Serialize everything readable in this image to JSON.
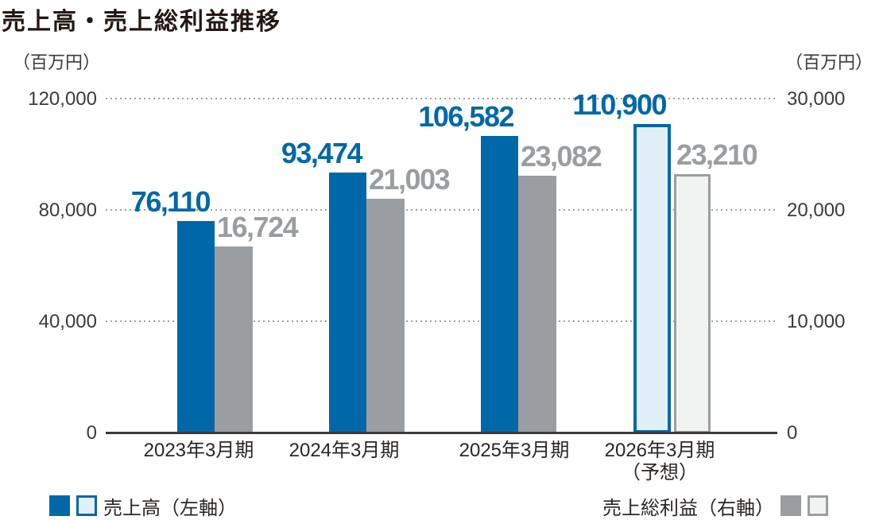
{
  "title": "売上高・売上総利益推移",
  "left_axis": {
    "unit": "（百万円）",
    "ticks": [
      "120,000",
      "80,000",
      "40,000",
      "0"
    ]
  },
  "right_axis": {
    "unit": "（百万円）",
    "ticks": [
      "30,000",
      "20,000",
      "10,000",
      "0"
    ]
  },
  "legend": {
    "revenue": "売上高（左軸）",
    "gross_profit": "売上総利益（右軸）"
  },
  "colors": {
    "revenue": "#0068A8",
    "revenue_forecast_fill": "#E1EFF9",
    "gross_profit": "#9B9EA0",
    "gross_profit_forecast_fill": "#F1F2F2",
    "text_dark": "#231815",
    "tick_text": "#3E3A39",
    "gridline": "#9FA0A0"
  },
  "chart_data": {
    "type": "bar",
    "title": "売上高・売上総利益推移",
    "unit": "百万円",
    "categories": [
      "2023年3月期",
      "2024年3月期",
      "2025年3月期",
      "2026年3月期"
    ],
    "category_notes": [
      "",
      "",
      "",
      "（予想）"
    ],
    "series": [
      {
        "name": "売上高（左軸）",
        "axis": "left",
        "values": [
          76110,
          93474,
          106582,
          110900
        ]
      },
      {
        "name": "売上総利益（右軸）",
        "axis": "right",
        "values": [
          16724,
          21003,
          23082,
          23210
        ]
      }
    ],
    "left_axis": {
      "label": "（百万円）",
      "range": [
        0,
        120000
      ],
      "tick_step": 40000
    },
    "right_axis": {
      "label": "（百万円）",
      "range": [
        0,
        30000
      ],
      "tick_step": 10000
    },
    "forecast_category_index": 3,
    "gridlines": "dotted",
    "legend_position": "bottom"
  }
}
